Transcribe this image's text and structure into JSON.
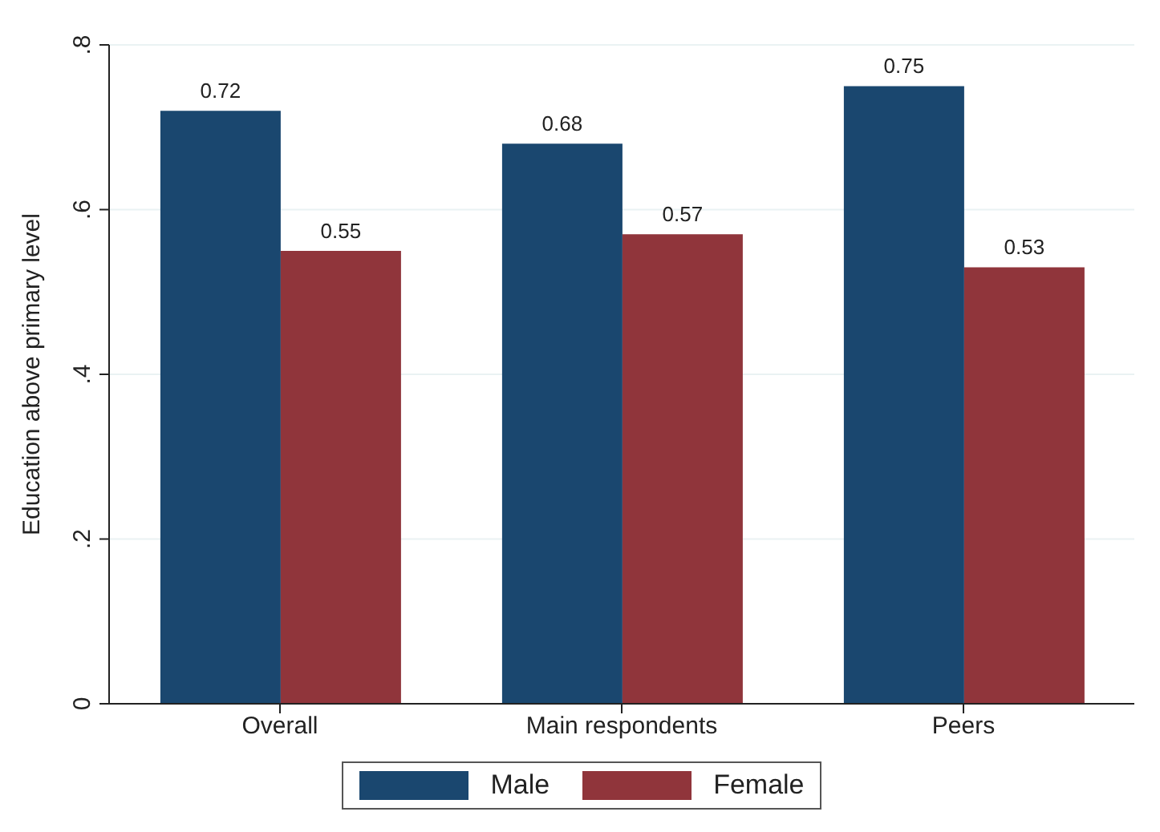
{
  "chart_data": {
    "type": "bar",
    "ylabel": "Education above primary level",
    "categories": [
      "Overall",
      "Main respondents",
      "Peers"
    ],
    "series": [
      {
        "name": "Male",
        "color": "#1a476f",
        "values": [
          0.72,
          0.68,
          0.75
        ]
      },
      {
        "name": "Female",
        "color": "#90353b",
        "values": [
          0.55,
          0.57,
          0.53
        ]
      }
    ],
    "ylim": [
      0,
      0.8
    ],
    "yticks": [
      {
        "value": 0,
        "label": "0"
      },
      {
        "value": 0.2,
        "label": ".2"
      },
      {
        "value": 0.4,
        "label": ".4"
      },
      {
        "value": 0.6,
        "label": ".6"
      },
      {
        "value": 0.8,
        "label": ".8"
      }
    ],
    "grid": "y",
    "legend": "bottom",
    "data_labels": true
  }
}
